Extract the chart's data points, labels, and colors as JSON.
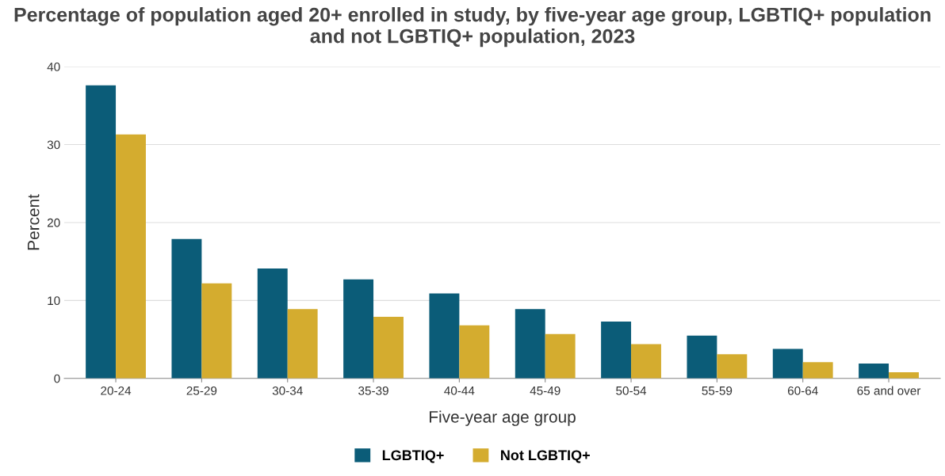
{
  "chart_data": {
    "type": "bar",
    "title": "Percentage of population aged 20+ enrolled in study, by five-year age group, LGBTIQ+ population and not LGBTIQ+ population, 2023",
    "xlabel": "Five-year age group",
    "ylabel": "Percent",
    "categories": [
      "20-24",
      "25-29",
      "30-34",
      "35-39",
      "40-44",
      "45-49",
      "50-54",
      "55-59",
      "60-64",
      "65 and over"
    ],
    "series": [
      {
        "name": "LGBTIQ+",
        "color": "#0b5c78",
        "values": [
          37.6,
          17.9,
          14.1,
          12.7,
          10.9,
          8.9,
          7.3,
          5.5,
          3.8,
          1.9
        ]
      },
      {
        "name": "Not LGBTIQ+",
        "color": "#d4ac2f",
        "values": [
          31.3,
          12.2,
          8.9,
          7.9,
          6.8,
          5.7,
          4.4,
          3.1,
          2.1,
          0.8
        ]
      }
    ],
    "ylim": [
      0,
      40
    ],
    "yticks": [
      0,
      10,
      20,
      30,
      40
    ],
    "grid": "y",
    "legend": "bottom"
  }
}
